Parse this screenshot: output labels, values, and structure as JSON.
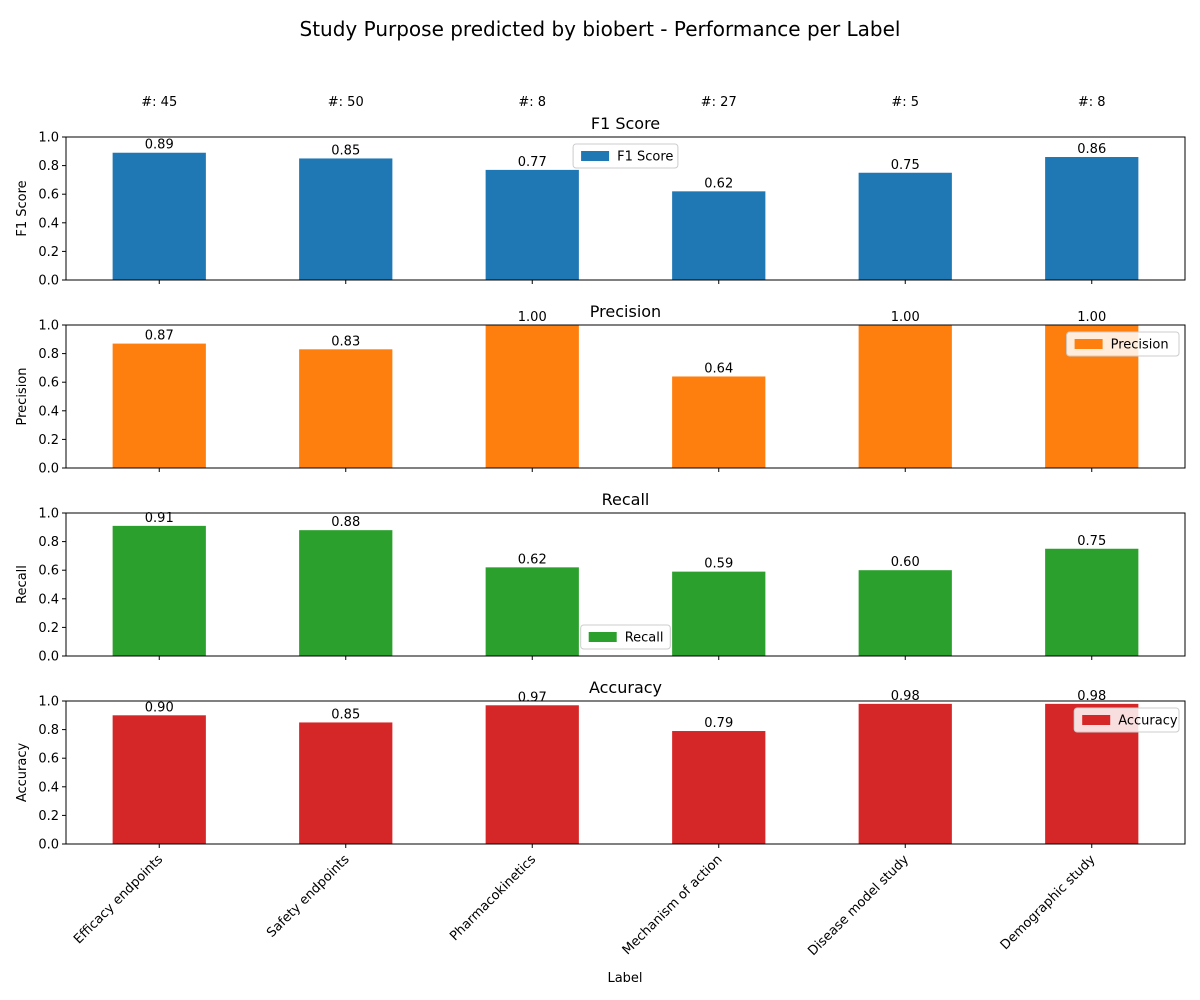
{
  "chart_data": {
    "type": "bar",
    "title": "Study Purpose predicted by biobert - Performance per Label",
    "xlabel": "Label",
    "categories": [
      "Efficacy endpoints",
      "Safety endpoints",
      "Pharmacokinetics",
      "Mechanism of action",
      "Disease model study",
      "Demographic study"
    ],
    "count_labels": [
      "#: 45",
      "#: 50",
      "#: 8",
      "#: 27",
      "#: 5",
      "#: 8"
    ],
    "y_ticks": [
      "0.0",
      "0.2",
      "0.4",
      "0.6",
      "0.8",
      "1.0"
    ],
    "ylim": [
      0,
      1
    ],
    "panels": [
      {
        "title": "F1 Score",
        "ylabel": "F1 Score",
        "color": "#1f77b4",
        "legend": "F1 Score",
        "legend_position": "top-center",
        "values": [
          0.89,
          0.85,
          0.77,
          0.62,
          0.75,
          0.86
        ],
        "value_labels": [
          "0.89",
          "0.85",
          "0.77",
          "0.62",
          "0.75",
          "0.86"
        ]
      },
      {
        "title": "Precision",
        "ylabel": "Precision",
        "color": "#ff7f0e",
        "legend": "Precision",
        "legend_position": "top-right",
        "values": [
          0.87,
          0.83,
          1.0,
          0.64,
          1.0,
          1.0
        ],
        "value_labels": [
          "0.87",
          "0.83",
          "1.00",
          "0.64",
          "1.00",
          "1.00"
        ]
      },
      {
        "title": "Recall",
        "ylabel": "Recall",
        "color": "#2ca02c",
        "legend": "Recall",
        "legend_position": "bottom-center",
        "values": [
          0.91,
          0.88,
          0.62,
          0.59,
          0.6,
          0.75
        ],
        "value_labels": [
          "0.91",
          "0.88",
          "0.62",
          "0.59",
          "0.60",
          "0.75"
        ]
      },
      {
        "title": "Accuracy",
        "ylabel": "Accuracy",
        "color": "#d62728",
        "legend": "Accuracy",
        "legend_position": "top-right",
        "values": [
          0.9,
          0.85,
          0.97,
          0.79,
          0.98,
          0.98
        ],
        "value_labels": [
          "0.90",
          "0.85",
          "0.97",
          "0.79",
          "0.98",
          "0.98"
        ]
      }
    ]
  }
}
